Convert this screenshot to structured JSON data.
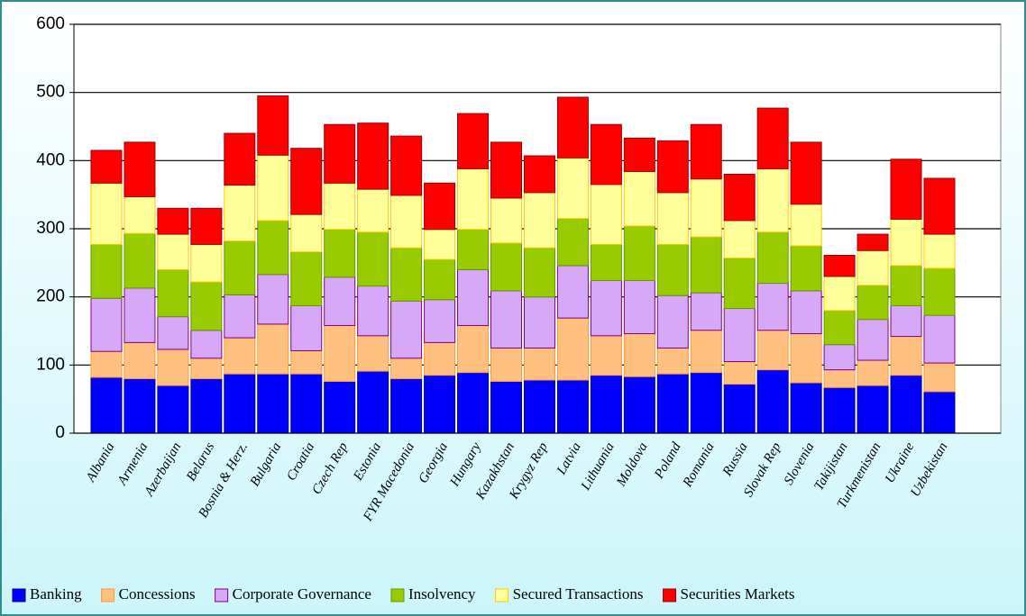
{
  "chart_data": {
    "type": "stacked_bar",
    "categories": [
      "Albania",
      "Armenia",
      "Azerbaijan",
      "Belarus",
      "Bosnia & Herz.",
      "Bulgaria",
      "Croatia",
      "Czech Rep",
      "Estonia",
      "FYR Macedonia",
      "Georgia",
      "Hungary",
      "Kazakhstan",
      "Krygyz Rep",
      "Latvia",
      "Lithuania",
      "Moldova",
      "Poland",
      "Romania",
      "Russia",
      "Slovak Rep",
      "Slovenia",
      "Takijistan",
      "Turkmenistan",
      "Ukraine",
      "Uzbekistan"
    ],
    "series": [
      {
        "name": "Banking",
        "color": "#0000ff",
        "values": [
          82,
          80,
          70,
          80,
          87,
          87,
          87,
          76,
          91,
          80,
          85,
          89,
          76,
          78,
          78,
          85,
          83,
          87,
          89,
          72,
          93,
          74,
          67,
          70,
          85,
          61
        ]
      },
      {
        "name": "Concessions",
        "color": "#ffc080",
        "values": [
          38,
          53,
          53,
          30,
          53,
          73,
          34,
          82,
          52,
          30,
          48,
          69,
          49,
          47,
          91,
          58,
          63,
          38,
          62,
          33,
          58,
          72,
          26,
          37,
          57,
          42
        ]
      },
      {
        "name": "Corporate Governance",
        "color": "#d8a8f8",
        "values": [
          78,
          80,
          48,
          41,
          63,
          73,
          66,
          71,
          73,
          84,
          63,
          82,
          84,
          75,
          77,
          81,
          78,
          77,
          55,
          78,
          69,
          63,
          37,
          60,
          45,
          70
        ]
      },
      {
        "name": "Insolvency",
        "color": "#99cc00",
        "values": [
          79,
          80,
          69,
          71,
          79,
          79,
          79,
          70,
          79,
          78,
          59,
          59,
          70,
          72,
          69,
          53,
          80,
          75,
          82,
          74,
          75,
          66,
          50,
          50,
          59,
          69
        ]
      },
      {
        "name": "Secured Transactions",
        "color": "#ffff99",
        "values": [
          90,
          54,
          52,
          55,
          82,
          96,
          55,
          68,
          63,
          77,
          44,
          89,
          66,
          81,
          89,
          88,
          80,
          76,
          85,
          55,
          93,
          61,
          50,
          51,
          68,
          50
        ]
      },
      {
        "name": "Securities Markets",
        "color": "#ff0000",
        "values": [
          48,
          80,
          38,
          53,
          76,
          87,
          97,
          86,
          97,
          87,
          68,
          81,
          82,
          54,
          89,
          88,
          49,
          76,
          80,
          68,
          89,
          91,
          31,
          24,
          88,
          82
        ]
      }
    ],
    "ylim": [
      0,
      600
    ],
    "yticks": [
      0,
      100,
      200,
      300,
      400,
      500,
      600
    ],
    "grid": true
  }
}
